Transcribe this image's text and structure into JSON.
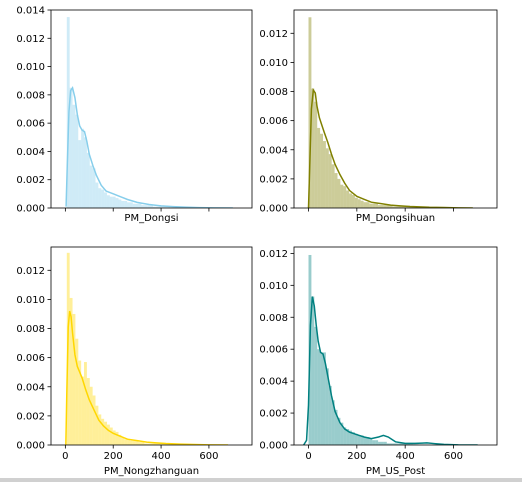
{
  "chart_data": [
    {
      "type": "histogram+kde",
      "xlabel": "PM_Dongsi",
      "color": "#87CEEB",
      "xlim": [
        -60,
        780
      ],
      "ylim": [
        0,
        0.014
      ],
      "xticks": [
        0,
        200,
        400,
        600
      ],
      "show_xtick_labels": false,
      "yticks": [
        0,
        0.002,
        0.004,
        0.006,
        0.008,
        0.01,
        0.012,
        0.014
      ],
      "ytick_labels": [
        "0.000",
        "0.002",
        "0.004",
        "0.006",
        "0.008",
        "0.010",
        "0.012",
        "0.014"
      ],
      "hist": {
        "bin_width": 12,
        "edges_start": 6,
        "densities": [
          0.0135,
          0.0085,
          0.0073,
          0.0066,
          0.0048,
          0.0056,
          0.005,
          0.0039,
          0.003,
          0.0028,
          0.0018,
          0.0014,
          0.0013,
          0.0011,
          0.0009,
          0.0008,
          0.0008,
          0.0007,
          0.0006,
          0.0005,
          0.0005,
          0.0004,
          0.0004,
          0.0003,
          0.0003,
          0.0003,
          0.0002,
          0.0002,
          0.0002,
          0.0002,
          0.0001,
          0.0001,
          0.0001,
          0.0001,
          0.0001,
          0.0001,
          5e-05,
          5e-05,
          5e-05,
          5e-05,
          3e-05,
          3e-05,
          3e-05,
          2e-05,
          2e-05,
          2e-05,
          1e-05,
          1e-05,
          1e-05,
          1e-05
        ]
      },
      "kde": {
        "x": [
          3,
          8,
          15,
          22,
          30,
          40,
          50,
          60,
          70,
          80,
          90,
          100,
          115,
          130,
          150,
          170,
          200,
          230,
          260,
          300,
          350,
          400,
          450,
          500,
          560,
          620,
          700
        ],
        "y": [
          0.0001,
          0.003,
          0.0068,
          0.0083,
          0.0085,
          0.0078,
          0.0066,
          0.0058,
          0.0055,
          0.0054,
          0.0047,
          0.0038,
          0.003,
          0.0023,
          0.0016,
          0.0012,
          0.001,
          0.0008,
          0.0006,
          0.0004,
          0.00025,
          0.00015,
          0.0001,
          6e-05,
          3e-05,
          1e-05,
          0.0
        ]
      }
    },
    {
      "type": "histogram+kde",
      "xlabel": "PM_Dongsihuan",
      "color": "#808000",
      "xlim": [
        -60,
        780
      ],
      "ylim": [
        0,
        0.0136
      ],
      "xticks": [
        0,
        200,
        400,
        600
      ],
      "show_xtick_labels": false,
      "yticks": [
        0,
        0.002,
        0.004,
        0.006,
        0.008,
        0.01,
        0.012
      ],
      "ytick_labels": [
        "0.000",
        "0.002",
        "0.004",
        "0.006",
        "0.008",
        "0.010",
        "0.012"
      ],
      "hist": {
        "bin_width": 12,
        "edges_start": 0,
        "densities": [
          0.0131,
          0.0082,
          0.0073,
          0.0055,
          0.0051,
          0.0046,
          0.0041,
          0.0037,
          0.003,
          0.0024,
          0.002,
          0.0016,
          0.0015,
          0.0012,
          0.001,
          0.0009,
          0.0007,
          0.0006,
          0.0005,
          0.0004,
          0.0004,
          0.0003,
          0.0003,
          0.0003,
          0.0002,
          0.0002,
          0.0002,
          0.0002,
          0.0002,
          0.0001,
          0.0001,
          0.0001,
          0.0001,
          0.0001,
          8e-05,
          8e-05,
          6e-05,
          6e-05,
          5e-05,
          4e-05,
          4e-05,
          3e-05,
          3e-05,
          3e-05,
          2e-05,
          2e-05,
          2e-05,
          1e-05,
          1e-05,
          1e-05,
          1e-05,
          1e-05,
          1e-05,
          1e-05,
          1e-05
        ]
      },
      "kde": {
        "x": [
          0,
          5,
          12,
          20,
          28,
          35,
          45,
          55,
          65,
          80,
          95,
          110,
          130,
          150,
          170,
          200,
          230,
          260,
          300,
          340,
          380,
          420,
          460,
          500,
          560,
          620,
          680
        ],
        "y": [
          0.0,
          0.0028,
          0.0068,
          0.0081,
          0.0079,
          0.007,
          0.0062,
          0.0057,
          0.0052,
          0.0045,
          0.0037,
          0.003,
          0.0023,
          0.0017,
          0.0012,
          0.0008,
          0.0006,
          0.0004,
          0.0003,
          0.0002,
          0.00015,
          0.0001,
          8e-05,
          5e-05,
          3e-05,
          1e-05,
          0.0
        ]
      }
    },
    {
      "type": "histogram+kde",
      "xlabel": "PM_Nongzhanguan",
      "color": "#FFD700",
      "xlim": [
        -60,
        780
      ],
      "ylim": [
        0,
        0.0136
      ],
      "xticks": [
        0,
        200,
        400,
        600
      ],
      "show_xtick_labels": true,
      "xtick_labels": [
        "0",
        "200",
        "400",
        "600"
      ],
      "yticks": [
        0,
        0.002,
        0.004,
        0.006,
        0.008,
        0.01,
        0.012
      ],
      "ytick_labels": [
        "0.000",
        "0.002",
        "0.004",
        "0.006",
        "0.008",
        "0.010",
        "0.012"
      ],
      "hist": {
        "bin_width": 12,
        "edges_start": 6,
        "densities": [
          0.0132,
          0.0101,
          0.009,
          0.0073,
          0.0058,
          0.0047,
          0.0057,
          0.0046,
          0.004,
          0.0034,
          0.0027,
          0.0021,
          0.0018,
          0.0016,
          0.0014,
          0.0012,
          0.001,
          0.0009,
          0.0007,
          0.0005,
          0.0004,
          0.0004,
          0.0003,
          0.0003,
          0.0003,
          0.0002,
          0.0002,
          0.0001,
          0.0001,
          0.0001,
          0.0001,
          0.0001,
          0.0001,
          8e-05,
          6e-05,
          5e-05,
          4e-05,
          4e-05,
          3e-05,
          3e-05,
          2e-05,
          2e-05,
          2e-05,
          1e-05,
          1e-05,
          1e-05
        ]
      },
      "kde": {
        "x": [
          2,
          6,
          12,
          18,
          24,
          30,
          40,
          50,
          60,
          70,
          85,
          100,
          120,
          140,
          160,
          180,
          200,
          230,
          260,
          300,
          340,
          380,
          420,
          480,
          540,
          600,
          680
        ],
        "y": [
          0.0,
          0.0035,
          0.0081,
          0.0092,
          0.0088,
          0.0077,
          0.0062,
          0.0054,
          0.005,
          0.0046,
          0.0038,
          0.0031,
          0.0024,
          0.0017,
          0.0013,
          0.001,
          0.0008,
          0.0006,
          0.0004,
          0.0003,
          0.0002,
          0.00015,
          0.0001,
          6e-05,
          3e-05,
          1e-05,
          0.0
        ]
      }
    },
    {
      "type": "histogram+kde",
      "xlabel": "PM_US_Post",
      "color": "#008080",
      "xlim": [
        -60,
        780
      ],
      "ylim": [
        0,
        0.0124
      ],
      "xticks": [
        0,
        200,
        400,
        600
      ],
      "show_xtick_labels": true,
      "xtick_labels": [
        "0",
        "200",
        "400",
        "600"
      ],
      "yticks": [
        0,
        0.002,
        0.004,
        0.006,
        0.008,
        0.01,
        0.012
      ],
      "ytick_labels": [
        "0.000",
        "0.002",
        "0.004",
        "0.006",
        "0.008",
        "0.010",
        "0.012"
      ],
      "hist": {
        "bin_width": 12,
        "edges_start": 0,
        "densities": [
          0.0119,
          0.0093,
          0.0074,
          0.006,
          0.0058,
          0.0058,
          0.0048,
          0.0037,
          0.0028,
          0.0022,
          0.0017,
          0.0014,
          0.0011,
          0.001,
          0.0009,
          0.0008,
          0.0007,
          0.0006,
          0.0006,
          0.0005,
          0.0005,
          0.0004,
          0.0003,
          0.0003,
          0.0002,
          0.0002,
          0.0002,
          0.0001,
          0.0001,
          0.0001,
          0.0001,
          0.0001,
          0.0001,
          8e-05,
          6e-05,
          5e-05,
          4e-05,
          4e-05,
          3e-05,
          3e-05,
          2e-05,
          2e-05,
          2e-05,
          1e-05,
          1e-05,
          1e-05,
          1e-05,
          1e-05,
          1e-05,
          1e-05,
          1e-05,
          1e-05,
          1e-05,
          1e-05,
          1e-05,
          1e-05,
          1e-05,
          1e-05,
          1e-05,
          1e-05,
          1e-05,
          1e-05
        ]
      },
      "kde": {
        "x": [
          -20,
          -8,
          0,
          8,
          16,
          24,
          32,
          40,
          50,
          60,
          70,
          80,
          95,
          110,
          130,
          150,
          170,
          190,
          210,
          230,
          260,
          290,
          310,
          330,
          360,
          400,
          440,
          470,
          490,
          520,
          560,
          620,
          700
        ],
        "y": [
          0.0,
          0.0003,
          0.0025,
          0.0075,
          0.0093,
          0.0087,
          0.0075,
          0.0065,
          0.0058,
          0.0057,
          0.0051,
          0.0043,
          0.0031,
          0.0021,
          0.0014,
          0.001,
          0.0008,
          0.0007,
          0.0006,
          0.0005,
          0.0004,
          0.0005,
          0.0006,
          0.0005,
          0.0002,
          0.0001,
          0.0001,
          0.00012,
          0.00013,
          9e-05,
          4e-05,
          1e-05,
          0.0
        ]
      }
    }
  ]
}
